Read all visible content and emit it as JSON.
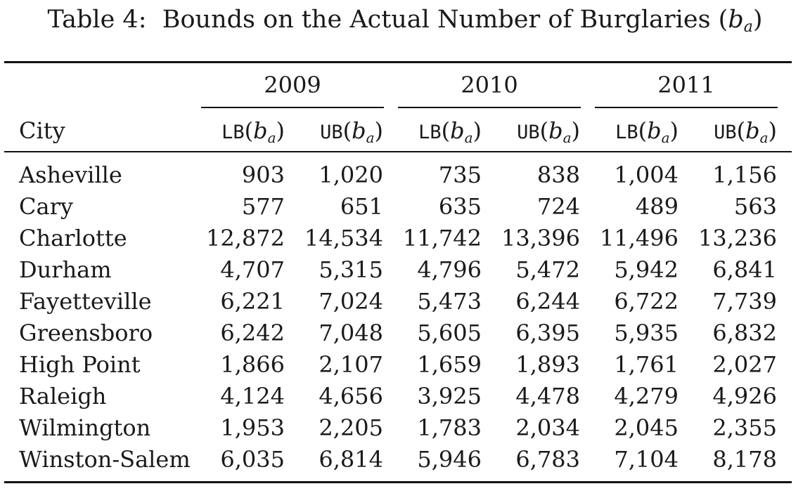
{
  "caption": {
    "prefix": "Table 4:",
    "text": "Bounds on the Actual Number of Burglaries (",
    "var": "b",
    "sub": "a",
    "close": ")"
  },
  "header": {
    "city_label": "City",
    "years": [
      "2009",
      "2010",
      "2011"
    ],
    "lb_label": "LB",
    "ub_label": "UB",
    "var": "b",
    "sub": "a",
    "open_paren": "(",
    "close_paren": ")"
  },
  "rows": [
    {
      "city": "Asheville",
      "values": [
        "903",
        "1,020",
        "735",
        "838",
        "1,004",
        "1,156"
      ]
    },
    {
      "city": "Cary",
      "values": [
        "577",
        "651",
        "635",
        "724",
        "489",
        "563"
      ]
    },
    {
      "city": "Charlotte",
      "values": [
        "12,872",
        "14,534",
        "11,742",
        "13,396",
        "11,496",
        "13,236"
      ]
    },
    {
      "city": "Durham",
      "values": [
        "4,707",
        "5,315",
        "4,796",
        "5,472",
        "5,942",
        "6,841"
      ]
    },
    {
      "city": "Fayetteville",
      "values": [
        "6,221",
        "7,024",
        "5,473",
        "6,244",
        "6,722",
        "7,739"
      ]
    },
    {
      "city": "Greensboro",
      "values": [
        "6,242",
        "7,048",
        "5,605",
        "6,395",
        "5,935",
        "6,832"
      ]
    },
    {
      "city": "High Point",
      "values": [
        "1,866",
        "2,107",
        "1,659",
        "1,893",
        "1,761",
        "2,027"
      ]
    },
    {
      "city": "Raleigh",
      "values": [
        "4,124",
        "4,656",
        "3,925",
        "4,478",
        "4,279",
        "4,926"
      ]
    },
    {
      "city": "Wilmington",
      "values": [
        "1,953",
        "2,205",
        "1,783",
        "2,034",
        "2,045",
        "2,355"
      ]
    },
    {
      "city": "Winston-Salem",
      "values": [
        "6,035",
        "6,814",
        "5,946",
        "6,783",
        "7,104",
        "8,178"
      ]
    }
  ]
}
